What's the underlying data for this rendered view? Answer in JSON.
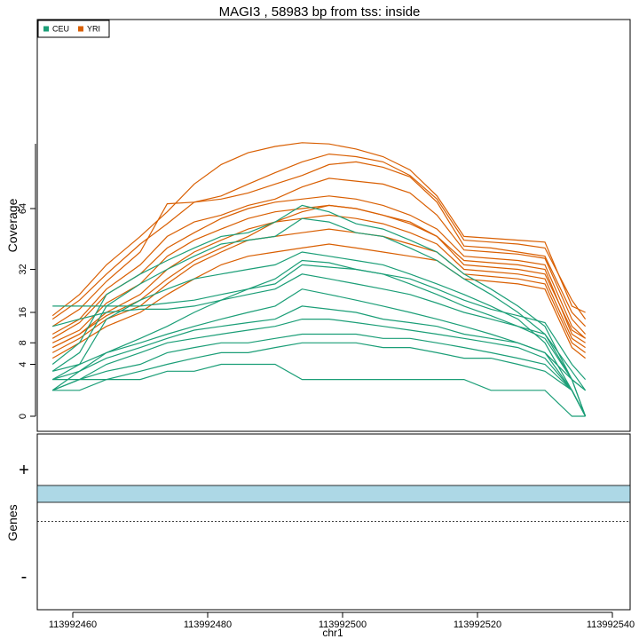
{
  "chart_data": {
    "type": "line",
    "title": "MAGI3 , 58983 bp from tss: inside",
    "ylabel": "Coverage",
    "xlabel": "chr1",
    "y_scale": "sqrt",
    "ylim": [
      0,
      112
    ],
    "xlim": [
      113992457,
      113992540
    ],
    "y_ticks": [
      0,
      4,
      8,
      16,
      32,
      64
    ],
    "y_tick_labels": [
      "0",
      "4",
      "8",
      "16",
      "32",
      "64"
    ],
    "x_ticks": [
      113992460,
      113992480,
      113992500,
      113992520,
      113992540
    ],
    "x_tick_labels": [
      "113992460",
      "113992480",
      "113992500",
      "113992520",
      "113992540"
    ],
    "legend": {
      "position": "top-left",
      "entries": [
        {
          "name": "CEU",
          "color": "#1b9e77"
        },
        {
          "name": "YRI",
          "color": "#d95f02"
        }
      ]
    },
    "series": [
      {
        "name": "YRI",
        "color": "#d95f02",
        "x": [
          113992457,
          113992461,
          113992465,
          113992470,
          113992474,
          113992478,
          113992482,
          113992486,
          113992490,
          113992494,
          113992498,
          113992502,
          113992506,
          113992510,
          113992514,
          113992518,
          113992522,
          113992526,
          113992530,
          113992534,
          113992536
        ],
        "values": [
          15,
          22,
          34,
          48,
          62,
          80,
          94,
          103,
          108,
          111,
          110,
          106,
          100,
          90,
          72,
          48,
          47,
          46,
          45,
          18,
          16
        ]
      },
      {
        "name": "YRI",
        "color": "#d95f02",
        "x": [
          113992457,
          113992461,
          113992465,
          113992470,
          113992474,
          113992478,
          113992482,
          113992486,
          113992490,
          113992494,
          113992498,
          113992502,
          113992506,
          113992510,
          113992514,
          113992518,
          113992522,
          113992526,
          113992530,
          113992534,
          113992536
        ],
        "values": [
          14,
          20,
          30,
          44,
          55,
          68,
          72,
          80,
          88,
          96,
          102,
          100,
          96,
          86,
          70,
          46,
          45,
          44,
          42,
          20,
          14
        ]
      },
      {
        "name": "YRI",
        "color": "#d95f02",
        "x": [
          113992457,
          113992461,
          113992465,
          113992470,
          113992474,
          113992478,
          113992482,
          113992486,
          113992490,
          113992494,
          113992498,
          113992502,
          113992506,
          113992510,
          113992514,
          113992518,
          113992522,
          113992526,
          113992530,
          113992534,
          113992536
        ],
        "values": [
          12,
          17,
          27,
          40,
          67,
          68,
          70,
          74,
          80,
          86,
          94,
          96,
          92,
          85,
          68,
          43,
          42,
          40,
          38,
          16,
          12
        ]
      },
      {
        "name": "YRI",
        "color": "#d95f02",
        "x": [
          113992457,
          113992461,
          113992465,
          113992470,
          113992474,
          113992478,
          113992482,
          113992486,
          113992490,
          113992494,
          113992498,
          113992502,
          113992506,
          113992510,
          113992514,
          113992518,
          113992522,
          113992526,
          113992530,
          113992534,
          113992536
        ],
        "values": [
          10,
          14,
          24,
          34,
          48,
          56,
          60,
          66,
          70,
          78,
          84,
          82,
          80,
          74,
          60,
          41,
          40,
          39,
          37,
          14,
          10
        ]
      },
      {
        "name": "YRI",
        "color": "#d95f02",
        "x": [
          113992457,
          113992461,
          113992465,
          113992470,
          113992474,
          113992478,
          113992482,
          113992486,
          113992490,
          113992494,
          113992498,
          113992502,
          113992506,
          113992510,
          113992514,
          113992518,
          113992522,
          113992526,
          113992530,
          113992534,
          113992536
        ],
        "values": [
          9,
          13,
          22,
          30,
          42,
          50,
          58,
          64,
          68,
          70,
          72,
          70,
          66,
          60,
          52,
          38,
          37,
          36,
          34,
          12,
          9
        ]
      },
      {
        "name": "YRI",
        "color": "#d95f02",
        "x": [
          113992457,
          113992461,
          113992465,
          113992470,
          113992474,
          113992478,
          113992482,
          113992486,
          113992490,
          113992494,
          113992498,
          113992502,
          113992506,
          113992510,
          113992514,
          113992518,
          113992522,
          113992526,
          113992530,
          113992534,
          113992536
        ],
        "values": [
          8,
          11,
          19,
          26,
          38,
          46,
          52,
          58,
          62,
          64,
          66,
          64,
          60,
          55,
          48,
          36,
          35,
          34,
          32,
          10,
          8
        ]
      },
      {
        "name": "YRI",
        "color": "#d95f02",
        "x": [
          113992457,
          113992461,
          113992465,
          113992470,
          113992474,
          113992478,
          113992482,
          113992486,
          113992490,
          113992494,
          113992498,
          113992502,
          113992506,
          113992510,
          113992514,
          113992518,
          113992522,
          113992526,
          113992530,
          113992534,
          113992536
        ],
        "values": [
          7,
          10,
          16,
          22,
          32,
          40,
          46,
          52,
          56,
          58,
          60,
          58,
          55,
          50,
          44,
          32,
          31,
          30,
          28,
          9,
          7
        ]
      },
      {
        "name": "YRI",
        "color": "#d95f02",
        "x": [
          113992457,
          113992461,
          113992465,
          113992470,
          113992474,
          113992478,
          113992482,
          113992486,
          113992490,
          113992494,
          113992498,
          113992502,
          113992506,
          113992510,
          113992514,
          113992518,
          113992522,
          113992526,
          113992530,
          113992534,
          113992536
        ],
        "values": [
          6,
          9,
          14,
          18,
          26,
          34,
          40,
          46,
          48,
          50,
          52,
          50,
          48,
          44,
          40,
          30,
          29,
          28,
          26,
          8,
          6
        ]
      },
      {
        "name": "YRI",
        "color": "#d95f02",
        "x": [
          113992457,
          113992461,
          113992465,
          113992470,
          113992474,
          113992478,
          113992482,
          113992486,
          113992490,
          113992494,
          113992498,
          113992502,
          113992506,
          113992510,
          113992514,
          113992518,
          113992522,
          113992526,
          113992530,
          113992534,
          113992536
        ],
        "values": [
          5,
          8,
          12,
          16,
          22,
          28,
          34,
          38,
          40,
          42,
          44,
          42,
          40,
          38,
          36,
          28,
          27,
          26,
          24,
          7,
          5
        ]
      },
      {
        "name": "YRI",
        "color": "#d95f02",
        "x": [
          113992457,
          113992461,
          113992465,
          113992470,
          113992474,
          113992478,
          113992482,
          113992486,
          113992490,
          113992494,
          113992498,
          113992502,
          113992506,
          113992510,
          113992514,
          113992518,
          113992522,
          113992526,
          113992530,
          113992534,
          113992536
        ],
        "values": [
          7,
          10,
          15,
          20,
          28,
          36,
          42,
          48,
          56,
          62,
          66,
          64,
          60,
          56,
          48,
          34,
          33,
          32,
          30,
          11,
          9
        ]
      },
      {
        "name": "CEU",
        "color": "#1b9e77",
        "x": [
          113992457,
          113992461,
          113992465,
          113992470,
          113992474,
          113992478,
          113992482,
          113992486,
          113992490,
          113992494,
          113992498,
          113992502,
          113992506,
          113992510,
          113992514,
          113992518,
          113992522,
          113992526,
          113992530,
          113992534,
          113992536
        ],
        "values": [
          4,
          8,
          22,
          30,
          36,
          42,
          48,
          50,
          56,
          66,
          62,
          55,
          52,
          46,
          40,
          30,
          24,
          18,
          12,
          2,
          1
        ]
      },
      {
        "name": "CEU",
        "color": "#1b9e77",
        "x": [
          113992457,
          113992461,
          113992465,
          113992470,
          113992474,
          113992478,
          113992482,
          113992486,
          113992490,
          113992494,
          113992498,
          113992502,
          113992506,
          113992510,
          113992514,
          113992518,
          113992522,
          113992526,
          113992530,
          113992534,
          113992536
        ],
        "values": [
          3,
          6,
          18,
          26,
          32,
          38,
          44,
          46,
          48,
          58,
          56,
          50,
          48,
          42,
          36,
          28,
          22,
          16,
          10,
          2,
          0
        ]
      },
      {
        "name": "CEU",
        "color": "#1b9e77",
        "x": [
          113992457,
          113992461,
          113992465,
          113992470,
          113992474,
          113992478,
          113992482,
          113992486,
          113992490,
          113992494,
          113992498,
          113992502,
          113992506,
          113992510,
          113992514,
          113992518,
          113992522,
          113992526,
          113992530,
          113992534,
          113992536
        ],
        "values": [
          2,
          4,
          14,
          20,
          24,
          28,
          30,
          32,
          34,
          40,
          38,
          36,
          34,
          30,
          26,
          22,
          18,
          14,
          8,
          1,
          0
        ]
      },
      {
        "name": "CEU",
        "color": "#1b9e77",
        "x": [
          113992457,
          113992461,
          113992465,
          113992470,
          113992474,
          113992478,
          113992482,
          113992486,
          113992490,
          113992494,
          113992498,
          113992502,
          113992506,
          113992510,
          113992514,
          113992518,
          113992522,
          113992526,
          113992530,
          113992534,
          113992536
        ],
        "values": [
          18,
          18,
          18,
          18,
          19,
          20,
          22,
          24,
          26,
          34,
          33,
          32,
          30,
          28,
          24,
          20,
          17,
          15,
          13,
          4,
          2
        ]
      },
      {
        "name": "CEU",
        "color": "#1b9e77",
        "x": [
          113992457,
          113992461,
          113992465,
          113992470,
          113992474,
          113992478,
          113992482,
          113992486,
          113992490,
          113992494,
          113992498,
          113992502,
          113992506,
          113992510,
          113992514,
          113992518,
          113992522,
          113992526,
          113992530,
          113992534,
          113992536
        ],
        "values": [
          12,
          14,
          16,
          17,
          17,
          18,
          20,
          22,
          24,
          30,
          28,
          26,
          24,
          22,
          19,
          16,
          14,
          12,
          10,
          3,
          1
        ]
      },
      {
        "name": "CEU",
        "color": "#1b9e77",
        "x": [
          113992457,
          113992461,
          113992465,
          113992470,
          113992474,
          113992478,
          113992482,
          113992486,
          113992490,
          113992494,
          113992498,
          113992502,
          113992506,
          113992510,
          113992514,
          113992518,
          113992522,
          113992526,
          113992530,
          113992534,
          113992536
        ],
        "values": [
          3,
          4,
          6,
          8,
          10,
          12,
          14,
          16,
          18,
          24,
          22,
          20,
          18,
          16,
          14,
          12,
          10,
          8,
          6,
          2,
          0
        ]
      },
      {
        "name": "CEU",
        "color": "#1b9e77",
        "x": [
          113992457,
          113992461,
          113992465,
          113992470,
          113992474,
          113992478,
          113992482,
          113992486,
          113992490,
          113992494,
          113992498,
          113992502,
          113992506,
          113992510,
          113992514,
          113992518,
          113992522,
          113992526,
          113992530,
          113992534,
          113992536
        ],
        "values": [
          2,
          3,
          5,
          7,
          9,
          11,
          12,
          13,
          14,
          18,
          17,
          16,
          14,
          13,
          12,
          10,
          9,
          8,
          6,
          1,
          0
        ]
      },
      {
        "name": "CEU",
        "color": "#1b9e77",
        "x": [
          113992457,
          113992461,
          113992465,
          113992470,
          113992474,
          113992478,
          113992482,
          113992486,
          113992490,
          113992494,
          113992498,
          113992502,
          113992506,
          113992510,
          113992514,
          113992518,
          113992522,
          113992526,
          113992530,
          113992534,
          113992536
        ],
        "values": [
          1,
          2,
          4,
          6,
          8,
          9,
          10,
          11,
          12,
          14,
          14,
          13,
          12,
          11,
          10,
          9,
          8,
          7,
          5,
          1,
          0
        ]
      },
      {
        "name": "CEU",
        "color": "#1b9e77",
        "x": [
          113992457,
          113992461,
          113992465,
          113992470,
          113992474,
          113992478,
          113992482,
          113992486,
          113992490,
          113992494,
          113992498,
          113992502,
          113992506,
          113992510,
          113992514,
          113992518,
          113992522,
          113992526,
          113992530,
          113992534,
          113992536
        ],
        "values": [
          1,
          2,
          3,
          4,
          6,
          7,
          8,
          8,
          9,
          10,
          10,
          10,
          9,
          9,
          8,
          7,
          6,
          5,
          4,
          1,
          0
        ]
      },
      {
        "name": "CEU",
        "color": "#1b9e77",
        "x": [
          113992457,
          113992461,
          113992465,
          113992470,
          113992474,
          113992478,
          113992482,
          113992486,
          113992490,
          113992494,
          113992498,
          113992502,
          113992506,
          113992510,
          113992514,
          113992518,
          113992522,
          113992526,
          113992530,
          113992534,
          113992536
        ],
        "values": [
          2,
          2,
          2,
          3,
          4,
          5,
          6,
          6,
          7,
          8,
          8,
          8,
          7,
          7,
          6,
          5,
          5,
          4,
          3,
          1,
          0
        ]
      },
      {
        "name": "CEU",
        "color": "#1b9e77",
        "x": [
          113992457,
          113992461,
          113992465,
          113992470,
          113992474,
          113992478,
          113992482,
          113992486,
          113992490,
          113992494,
          113992498,
          113992502,
          113992506,
          113992510,
          113992514,
          113992518,
          113992522,
          113992526,
          113992530,
          113992534,
          113992536
        ],
        "values": [
          1,
          1,
          2,
          2,
          3,
          3,
          4,
          4,
          4,
          2,
          2,
          2,
          2,
          2,
          2,
          2,
          1,
          1,
          1,
          0,
          0
        ]
      },
      {
        "name": "CEU",
        "color": "#1b9e77",
        "x": [
          113992457,
          113992461,
          113992465,
          113992470,
          113992474,
          113992478,
          113992482,
          113992486,
          113992490,
          113992494,
          113992498,
          113992502,
          113992506,
          113992510,
          113992514,
          113992518,
          113992522,
          113992526,
          113992530,
          113992534,
          113992536
        ],
        "values": [
          1,
          3,
          6,
          9,
          12,
          16,
          20,
          24,
          28,
          36,
          35,
          32,
          30,
          26,
          22,
          18,
          15,
          12,
          9,
          2,
          1
        ]
      }
    ]
  },
  "genes_track": {
    "label": "Genes",
    "plus_label": "+",
    "minus_label": "-",
    "gene_bar_color": "#add8e6"
  }
}
